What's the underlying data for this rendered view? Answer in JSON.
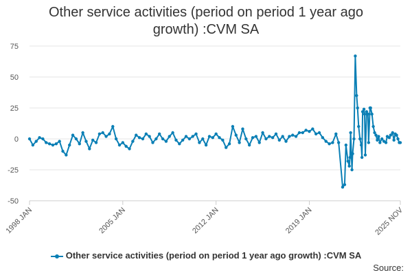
{
  "title": {
    "line1": "Other service activities (period on period 1 year ago",
    "line2": "growth) :CVM SA"
  },
  "legend_label": "Other service activities (period on period 1 year ago growth) :CVM SA",
  "source_label": "Source:",
  "colors": {
    "series": "#0a7fb5",
    "grid": "#e6e6e6",
    "axis": "#cccccc"
  },
  "chart_data": {
    "type": "line",
    "title": "Other service activities (period on period 1 year ago growth) :CVM SA",
    "xlabel": "",
    "ylabel": "",
    "ylim": [
      -50,
      75
    ],
    "yticks": [
      75,
      50,
      25,
      0,
      -25,
      -50
    ],
    "xlim": [
      1998.0,
      2025.83
    ],
    "xticks": [
      {
        "label": "1998 JAN",
        "x": 1998.0
      },
      {
        "label": "2005 JAN",
        "x": 2005.0
      },
      {
        "label": "2012 JAN",
        "x": 2012.0
      },
      {
        "label": "2019 JAN",
        "x": 2019.0
      },
      {
        "label": "2025 NOV",
        "x": 2025.83
      }
    ],
    "grid": true,
    "legend": "bottom",
    "series": [
      {
        "name": "Other service activities (period on period 1 year ago growth) :CVM SA",
        "points": [
          [
            1998.0,
            0
          ],
          [
            1998.25,
            -5
          ],
          [
            1998.5,
            -2
          ],
          [
            1998.75,
            1
          ],
          [
            1999.0,
            0
          ],
          [
            1999.25,
            -3
          ],
          [
            1999.5,
            -4
          ],
          [
            1999.75,
            -5
          ],
          [
            2000.0,
            -4
          ],
          [
            2000.25,
            -2
          ],
          [
            2000.5,
            -10
          ],
          [
            2000.75,
            -13
          ],
          [
            2001.0,
            -5
          ],
          [
            2001.25,
            3
          ],
          [
            2001.5,
            0
          ],
          [
            2001.75,
            -4
          ],
          [
            2002.0,
            5
          ],
          [
            2002.25,
            -2
          ],
          [
            2002.5,
            -8
          ],
          [
            2002.75,
            -1
          ],
          [
            2003.0,
            -3
          ],
          [
            2003.25,
            4
          ],
          [
            2003.5,
            5
          ],
          [
            2003.75,
            2
          ],
          [
            2004.0,
            4
          ],
          [
            2004.25,
            10
          ],
          [
            2004.5,
            0
          ],
          [
            2004.75,
            -5
          ],
          [
            2005.0,
            -3
          ],
          [
            2005.25,
            -6
          ],
          [
            2005.5,
            -8
          ],
          [
            2005.75,
            -2
          ],
          [
            2006.0,
            3
          ],
          [
            2006.25,
            1
          ],
          [
            2006.5,
            0
          ],
          [
            2006.75,
            4
          ],
          [
            2007.0,
            2
          ],
          [
            2007.25,
            -3
          ],
          [
            2007.5,
            0
          ],
          [
            2007.75,
            4
          ],
          [
            2008.0,
            0
          ],
          [
            2008.25,
            -2
          ],
          [
            2008.5,
            2
          ],
          [
            2008.75,
            5
          ],
          [
            2009.0,
            -1
          ],
          [
            2009.25,
            -4
          ],
          [
            2009.5,
            -1
          ],
          [
            2009.75,
            2
          ],
          [
            2010.0,
            0
          ],
          [
            2010.25,
            2
          ],
          [
            2010.5,
            4
          ],
          [
            2010.75,
            -3
          ],
          [
            2011.0,
            0
          ],
          [
            2011.25,
            -5
          ],
          [
            2011.5,
            2
          ],
          [
            2011.75,
            1
          ],
          [
            2012.0,
            4
          ],
          [
            2012.25,
            1
          ],
          [
            2012.5,
            -1
          ],
          [
            2012.75,
            -7
          ],
          [
            2013.0,
            -4
          ],
          [
            2013.25,
            10
          ],
          [
            2013.5,
            3
          ],
          [
            2013.75,
            -3
          ],
          [
            2014.0,
            8
          ],
          [
            2014.25,
            0
          ],
          [
            2014.5,
            -5
          ],
          [
            2014.75,
            1
          ],
          [
            2015.0,
            2
          ],
          [
            2015.25,
            -3
          ],
          [
            2015.5,
            5
          ],
          [
            2015.75,
            0
          ],
          [
            2016.0,
            2
          ],
          [
            2016.25,
            1
          ],
          [
            2016.5,
            4
          ],
          [
            2016.75,
            -1
          ],
          [
            2017.0,
            2
          ],
          [
            2017.25,
            -2
          ],
          [
            2017.5,
            2
          ],
          [
            2017.75,
            3
          ],
          [
            2018.0,
            2
          ],
          [
            2018.25,
            5
          ],
          [
            2018.5,
            5
          ],
          [
            2018.75,
            7
          ],
          [
            2019.0,
            6
          ],
          [
            2019.25,
            8
          ],
          [
            2019.5,
            4
          ],
          [
            2019.75,
            5
          ],
          [
            2020.0,
            1
          ],
          [
            2020.25,
            -2
          ],
          [
            2020.5,
            -4
          ],
          [
            2020.75,
            -3
          ],
          [
            2021.0,
            4
          ],
          [
            2021.2,
            -3
          ],
          [
            2021.5,
            -39
          ],
          [
            2021.65,
            -37
          ],
          [
            2021.75,
            -5
          ],
          [
            2021.9,
            -18
          ],
          [
            2022.0,
            -22
          ],
          [
            2022.05,
            -15
          ],
          [
            2022.1,
            5
          ],
          [
            2022.2,
            -25
          ],
          [
            2022.25,
            -12
          ],
          [
            2022.35,
            0
          ],
          [
            2022.45,
            67
          ],
          [
            2022.55,
            35
          ],
          [
            2022.62,
            25
          ],
          [
            2022.7,
            10
          ],
          [
            2022.8,
            0
          ],
          [
            2022.9,
            -5
          ],
          [
            2022.95,
            -15
          ],
          [
            2023.0,
            22
          ],
          [
            2023.1,
            24
          ],
          [
            2023.15,
            20
          ],
          [
            2023.2,
            -13
          ],
          [
            2023.3,
            22
          ],
          [
            2023.4,
            20
          ],
          [
            2023.45,
            -3
          ],
          [
            2023.55,
            25
          ],
          [
            2023.6,
            25
          ],
          [
            2023.7,
            20
          ],
          [
            2023.8,
            10
          ],
          [
            2023.9,
            5
          ],
          [
            2024.0,
            3
          ],
          [
            2024.1,
            -1
          ],
          [
            2024.2,
            2
          ],
          [
            2024.3,
            -3
          ],
          [
            2024.45,
            0
          ],
          [
            2024.6,
            -2
          ],
          [
            2024.75,
            -3
          ],
          [
            2024.85,
            2
          ],
          [
            2025.0,
            1
          ],
          [
            2025.1,
            3
          ],
          [
            2025.25,
            5
          ],
          [
            2025.35,
            -1
          ],
          [
            2025.45,
            4
          ],
          [
            2025.55,
            3
          ],
          [
            2025.65,
            0
          ],
          [
            2025.75,
            -3
          ],
          [
            2025.83,
            -3
          ]
        ]
      }
    ]
  }
}
